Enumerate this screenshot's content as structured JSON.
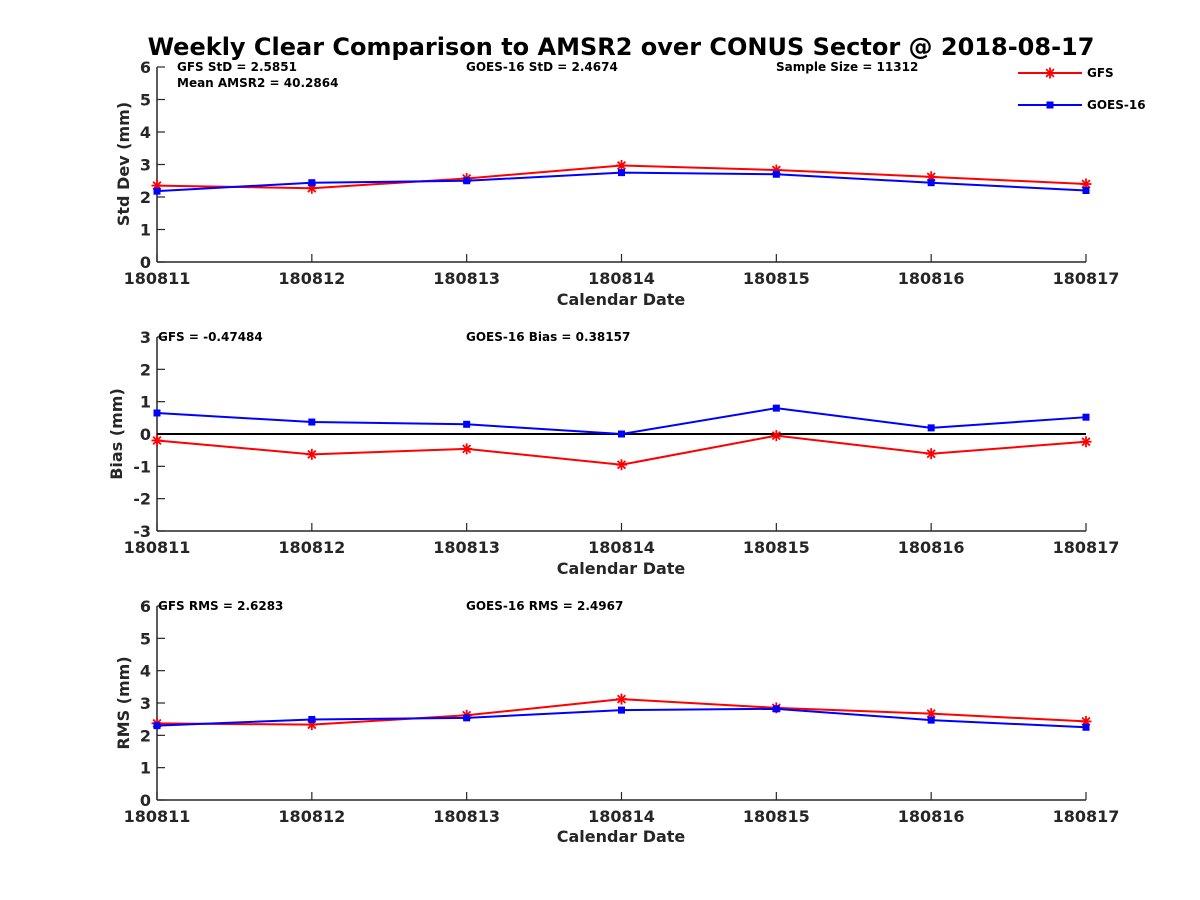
{
  "title": "Weekly Clear Comparison to AMSR2 over CONUS Sector @ 2018-08-17",
  "legend": {
    "placement": "top-right",
    "entries": [
      {
        "name": "GFS",
        "color": "#ff0000",
        "marker": "asterisk"
      },
      {
        "name": "GOES-16",
        "color": "#0000ff",
        "marker": "square"
      }
    ]
  },
  "chart_data": [
    {
      "type": "line",
      "xlabel": "Calendar Date",
      "ylabel": "Std Dev (mm)",
      "ylim": [
        0,
        6
      ],
      "yticks": [
        "0",
        "1",
        "2",
        "3",
        "4",
        "5",
        "6"
      ],
      "x": [
        "180811",
        "180812",
        "180813",
        "180814",
        "180815",
        "180816",
        "180817"
      ],
      "series": [
        {
          "name": "GFS",
          "color": "#ff0000",
          "values": [
            2.35,
            2.27,
            2.57,
            2.97,
            2.83,
            2.62,
            2.4
          ]
        },
        {
          "name": "GOES-16",
          "color": "#0000ff",
          "values": [
            2.18,
            2.44,
            2.5,
            2.75,
            2.7,
            2.44,
            2.2
          ]
        }
      ],
      "annotations": [
        "GFS StD = 2.5851",
        "Mean AMSR2 = 40.2864",
        "GOES-16 StD = 2.4674",
        "Sample Size = 11312"
      ],
      "grid": false
    },
    {
      "type": "line",
      "xlabel": "Calendar Date",
      "ylabel": "Bias (mm)",
      "ylim": [
        -3,
        3
      ],
      "yticks": [
        "-3",
        "-2",
        "-1",
        "0",
        "1",
        "2",
        "3"
      ],
      "x": [
        "180811",
        "180812",
        "180813",
        "180814",
        "180815",
        "180816",
        "180817"
      ],
      "zero_line": true,
      "series": [
        {
          "name": "GFS",
          "color": "#ff0000",
          "values": [
            -0.2,
            -0.63,
            -0.46,
            -0.95,
            -0.05,
            -0.61,
            -0.24
          ]
        },
        {
          "name": "GOES-16",
          "color": "#0000ff",
          "values": [
            0.65,
            0.37,
            0.3,
            0.0,
            0.8,
            0.19,
            0.52
          ]
        }
      ],
      "annotations": [
        "GFS = -0.47484",
        "GOES-16 Bias  = 0.38157"
      ],
      "grid": false
    },
    {
      "type": "line",
      "xlabel": "Calendar Date",
      "ylabel": "RMS (mm)",
      "ylim": [
        0,
        6
      ],
      "yticks": [
        "0",
        "1",
        "2",
        "3",
        "4",
        "5",
        "6"
      ],
      "x": [
        "180811",
        "180812",
        "180813",
        "180814",
        "180815",
        "180816",
        "180817"
      ],
      "series": [
        {
          "name": "GFS",
          "color": "#ff0000",
          "values": [
            2.37,
            2.33,
            2.62,
            3.12,
            2.85,
            2.67,
            2.43
          ]
        },
        {
          "name": "GOES-16",
          "color": "#0000ff",
          "values": [
            2.3,
            2.49,
            2.54,
            2.78,
            2.82,
            2.47,
            2.25
          ]
        }
      ],
      "annotations": [
        "GFS RMS = 2.6283",
        "GOES-16 RMS = 2.4967"
      ],
      "grid": false
    }
  ]
}
